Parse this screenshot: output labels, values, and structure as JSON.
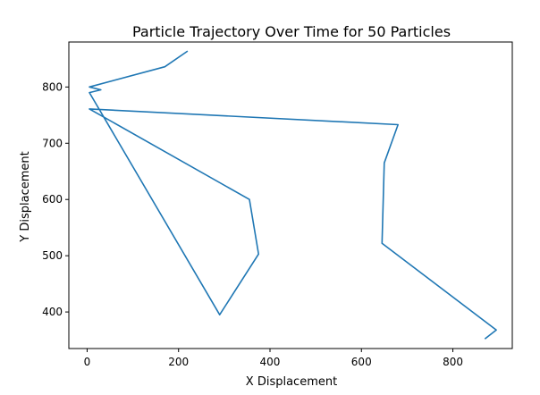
{
  "chart_data": {
    "type": "line",
    "title": "Particle Trajectory Over Time for 50 Particles",
    "xlabel": "X Displacement",
    "ylabel": "Y Displacement",
    "xlim": [
      -40,
      930
    ],
    "ylim": [
      335,
      880
    ],
    "xticks": [
      0,
      200,
      400,
      600,
      800
    ],
    "yticks": [
      400,
      500,
      600,
      700,
      800
    ],
    "grid": false,
    "series": [
      {
        "color": "#1f77b4",
        "x": [
          290,
          375,
          355,
          5,
          680,
          650,
          645,
          895,
          870
        ],
        "y": [
          395,
          503,
          600,
          761,
          733,
          665,
          522,
          368,
          352
        ],
        "x_prefix": [
          220,
          170,
          5,
          30,
          5
        ],
        "y_prefix": [
          864,
          836,
          800,
          795,
          790
        ]
      }
    ]
  }
}
